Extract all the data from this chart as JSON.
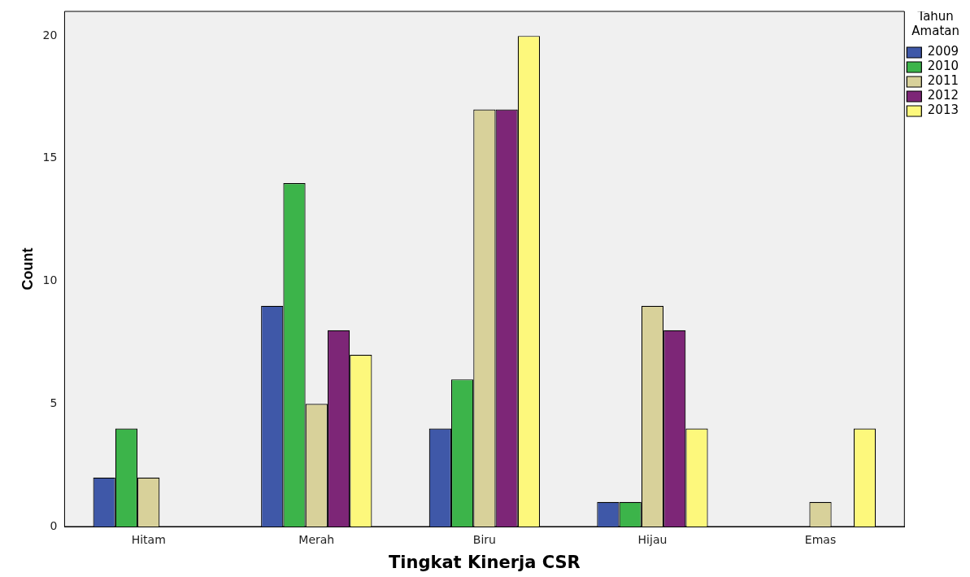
{
  "chart_data": {
    "type": "bar",
    "xlabel": "Tingkat Kinerja CSR",
    "ylabel": "Count",
    "legend_title": "Tahun Amatan",
    "categories": [
      "Hitam",
      "Merah",
      "Biru",
      "Hijau",
      "Emas"
    ],
    "series": [
      {
        "name": "2009",
        "color": "#3f58a8",
        "values": [
          2,
          9,
          4,
          1,
          null
        ]
      },
      {
        "name": "2010",
        "color": "#3cb44a",
        "values": [
          4,
          14,
          6,
          1,
          null
        ]
      },
      {
        "name": "2011",
        "color": "#d8d19a",
        "values": [
          2,
          5,
          17,
          9,
          1
        ]
      },
      {
        "name": "2012",
        "color": "#7d2677",
        "values": [
          null,
          8,
          17,
          8,
          null
        ]
      },
      {
        "name": "2013",
        "color": "#fdf87c",
        "values": [
          null,
          7,
          20,
          4,
          4
        ]
      }
    ],
    "ylim": [
      0,
      21
    ],
    "yticks": [
      0,
      5,
      10,
      15,
      20
    ],
    "grid": false,
    "legend": "right"
  }
}
